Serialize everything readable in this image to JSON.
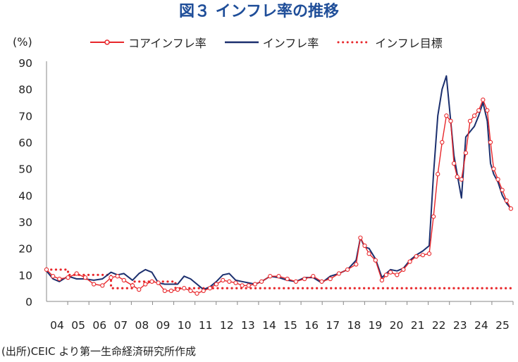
{
  "title": "図３ インフレ率の推移",
  "y_unit": "(%)",
  "source": "(出所)CEIC より第一生命経済研究所作成",
  "legend": {
    "core": "コアインフレ率",
    "headline": "インフレ率",
    "target": "インフレ目標"
  },
  "chart_data": {
    "type": "line",
    "ylim": [
      0,
      90
    ],
    "yticks": [
      0,
      10,
      20,
      30,
      40,
      50,
      60,
      70,
      80,
      90
    ],
    "x_tick_labels": [
      "04",
      "05",
      "06",
      "07",
      "08",
      "09",
      "10",
      "11",
      "12",
      "13",
      "14",
      "15",
      "16",
      "17",
      "18",
      "19",
      "20",
      "21",
      "22",
      "23",
      "24",
      "25"
    ],
    "grid": false,
    "legend_position": "top",
    "colors": {
      "core": "#e8262a",
      "headline": "#1b2f6e",
      "target": "#e8262a"
    },
    "series": [
      {
        "name": "インフレ率",
        "style": "solid",
        "x": [
          2004.0,
          2004.3,
          2004.6,
          2005.0,
          2005.4,
          2005.8,
          2006.2,
          2006.6,
          2007.0,
          2007.3,
          2007.6,
          2008.0,
          2008.3,
          2008.6,
          2008.9,
          2009.2,
          2009.5,
          2009.8,
          2010.1,
          2010.4,
          2010.7,
          2011.0,
          2011.3,
          2011.6,
          2011.9,
          2012.2,
          2012.5,
          2012.8,
          2013.1,
          2013.4,
          2013.7,
          2014.0,
          2014.4,
          2014.8,
          2015.2,
          2015.6,
          2016.0,
          2016.4,
          2016.8,
          2017.2,
          2017.6,
          2018.0,
          2018.4,
          2018.6,
          2018.8,
          2019.0,
          2019.3,
          2019.6,
          2019.8,
          2020.0,
          2020.3,
          2020.6,
          2020.9,
          2021.2,
          2021.5,
          2021.8,
          2022.0,
          2022.2,
          2022.4,
          2022.6,
          2022.8,
          2022.95,
          2023.1,
          2023.3,
          2023.5,
          2023.7,
          2023.9,
          2024.1,
          2024.3,
          2024.5,
          2024.65,
          2024.8,
          2025.0,
          2025.2,
          2025.4,
          2025.6
        ],
        "values": [
          11.5,
          8.5,
          7.5,
          9.5,
          8.5,
          8.5,
          8.0,
          8.5,
          11.0,
          10.0,
          10.5,
          8.0,
          10.5,
          12.0,
          11.0,
          7.0,
          6.5,
          6.5,
          6.5,
          9.5,
          8.5,
          6.5,
          4.5,
          5.5,
          7.5,
          10.0,
          10.5,
          8.0,
          7.5,
          7.0,
          6.5,
          7.5,
          9.5,
          9.0,
          8.0,
          7.5,
          9.0,
          9.0,
          7.0,
          9.5,
          10.5,
          12.0,
          15.5,
          24.0,
          20.5,
          20.0,
          16.0,
          9.0,
          10.5,
          12.0,
          11.5,
          12.5,
          15.5,
          17.5,
          19.0,
          21.0,
          48.0,
          70.0,
          80.0,
          85.0,
          68.0,
          55.0,
          48.0,
          39.0,
          62.0,
          64.0,
          66.0,
          70.0,
          75.0,
          68.0,
          52.0,
          48.0,
          45.0,
          40.0,
          37.0,
          35.0
        ]
      },
      {
        "name": "コアインフレ率",
        "style": "solid-with-markers",
        "x": [
          2004.0,
          2004.3,
          2004.6,
          2005.0,
          2005.4,
          2005.8,
          2006.2,
          2006.6,
          2007.0,
          2007.3,
          2007.6,
          2008.0,
          2008.3,
          2008.6,
          2008.9,
          2009.2,
          2009.5,
          2009.8,
          2010.1,
          2010.4,
          2010.7,
          2011.0,
          2011.3,
          2011.6,
          2011.9,
          2012.2,
          2012.5,
          2012.8,
          2013.1,
          2013.4,
          2013.7,
          2014.0,
          2014.4,
          2014.8,
          2015.2,
          2015.6,
          2016.0,
          2016.4,
          2016.8,
          2017.2,
          2017.6,
          2018.0,
          2018.4,
          2018.6,
          2018.8,
          2019.0,
          2019.3,
          2019.6,
          2019.8,
          2020.0,
          2020.3,
          2020.6,
          2020.9,
          2021.2,
          2021.5,
          2021.8,
          2022.0,
          2022.2,
          2022.4,
          2022.6,
          2022.8,
          2022.95,
          2023.1,
          2023.3,
          2023.5,
          2023.7,
          2023.9,
          2024.1,
          2024.3,
          2024.5,
          2024.65,
          2024.8,
          2025.0,
          2025.2,
          2025.4,
          2025.6
        ],
        "values": [
          12.0,
          9.5,
          8.5,
          9.0,
          10.5,
          9.0,
          6.5,
          6.0,
          9.0,
          9.5,
          8.0,
          6.0,
          4.5,
          6.5,
          7.5,
          7.0,
          4.0,
          4.0,
          4.5,
          5.0,
          4.0,
          3.0,
          4.0,
          5.0,
          6.5,
          8.0,
          7.5,
          7.0,
          6.0,
          6.0,
          6.5,
          7.5,
          9.5,
          9.5,
          8.5,
          7.5,
          8.5,
          9.5,
          7.5,
          8.5,
          10.5,
          12.0,
          14.0,
          24.0,
          21.0,
          18.0,
          15.5,
          8.0,
          10.0,
          11.0,
          10.0,
          12.0,
          15.0,
          17.0,
          17.5,
          18.0,
          32.0,
          48.0,
          60.0,
          70.0,
          68.0,
          52.0,
          47.0,
          46.0,
          56.0,
          68.0,
          70.0,
          72.0,
          76.0,
          72.0,
          60.0,
          50.0,
          46.0,
          42.0,
          38.0,
          35.0
        ]
      },
      {
        "name": "インフレ目標",
        "style": "dotted",
        "x": [
          2004.0,
          2005.0,
          2005.0,
          2007.0,
          2007.0,
          2008.0,
          2008.0,
          2010.0,
          2010.0,
          2025.65
        ],
        "values": [
          12.0,
          12.0,
          10.0,
          10.0,
          5.0,
          5.0,
          7.5,
          7.5,
          5.0,
          5.0
        ]
      }
    ]
  }
}
